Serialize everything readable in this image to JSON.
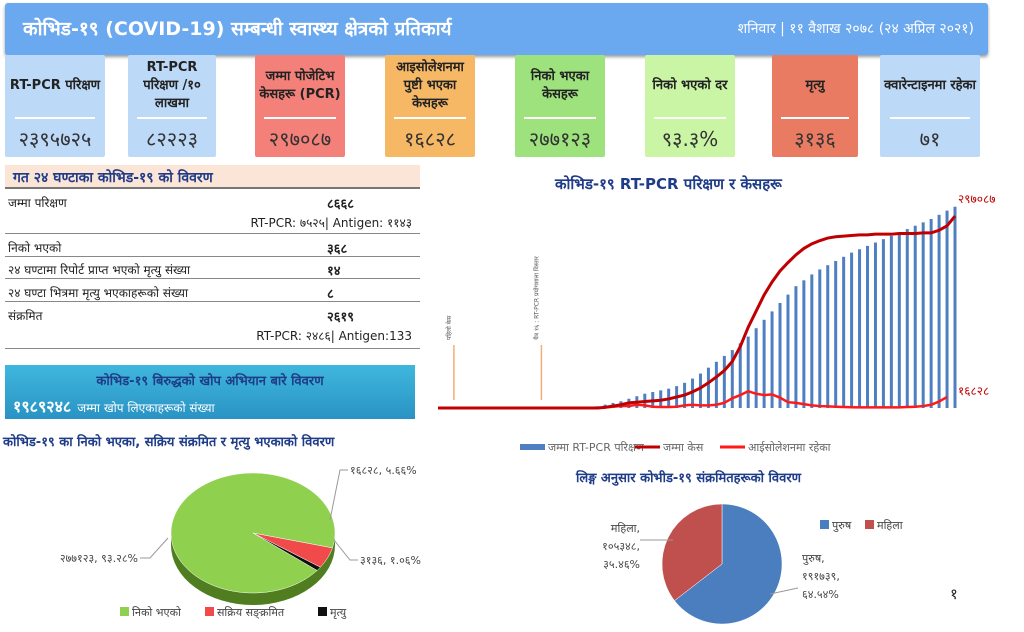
{
  "header": {
    "title": "कोभिड-१९ (COVID-19) सम्बन्धी स्वास्थ्य क्षेत्रको प्रतिकार्य",
    "date": "शनिवार | ११ वैशाख २०७८ (२४ अप्रिल २०२१)"
  },
  "cards": [
    {
      "label": "RT-PCR परिक्षण",
      "value": "२३९५७२५",
      "color": "#bcd9f7"
    },
    {
      "label": "RT-PCR परिक्षण /१० लाखमा",
      "value": "८२२२३",
      "color": "#bcd9f7"
    },
    {
      "label": "जम्मा पोजेटिभ केसहरू (PCR)",
      "value": "२९७०८७",
      "color": "#f4807a"
    },
    {
      "label": "आइसोलेशनमा पुष्टी भएका केसहरू",
      "value": "१६८२८",
      "color": "#f7b865"
    },
    {
      "label": "निको भएका केसहरू",
      "value": "२७७१२३",
      "color": "#9ee27e"
    },
    {
      "label": "निको भएको दर",
      "value": "९३.३%",
      "color": "#c9f5a5"
    },
    {
      "label": "मृत्यु",
      "value": "३१३६",
      "color": "#e97b62"
    },
    {
      "label": "क्वारेन्टाइनमा रहेका",
      "value": "७१",
      "color": "#bcd9f7"
    }
  ],
  "last24": {
    "title": "गत २४ घण्टाका कोभिड-१९ को विवरण",
    "rows": [
      {
        "label": "जम्मा परिक्षण",
        "value": "८६६८",
        "sub": "RT-PCR: ७५२५| Antigen: ११४३"
      },
      {
        "label": "निको भएको",
        "value": "३६८"
      },
      {
        "label": "२४ घण्टामा रिपोर्ट प्राप्त भएको मृत्यु संख्या",
        "value": "१४"
      },
      {
        "label": "२४ घण्टा भित्रमा मृत्यु भएकाहरूको संख्या",
        "value": "८"
      },
      {
        "label": "संक्रमित",
        "value": "२६१९",
        "sub": "RT-PCR: २४८६| Antigen:133"
      }
    ]
  },
  "vaccine": {
    "title": "कोभिड-१९ बिरुद्धको खोप अभियान बारे विवरण",
    "count": "१९८९२४८",
    "label": "जम्मा खोप लिएकाहरूको संख्या"
  },
  "page_number": "१",
  "chart_data": [
    {
      "type": "bar+line",
      "title": "कोभिड-१९ RT-PCR परिक्षण र केसहरू",
      "annotations": [
        "पहिलो केस",
        "चैत्र १६ : RT-PCR प्रयोगशाला विस्तार"
      ],
      "end_labels": {
        "cases": "२९७०८७",
        "isolation": "१६८२८"
      },
      "legend": [
        "जम्मा RT-PCR परिक्षण",
        "जम्मा केस",
        "आईसोलेशनमा रहेका"
      ],
      "colors": [
        "#4f7fc0",
        "#c00000",
        "#ff1a1a"
      ],
      "tests_thousands": [
        0,
        0,
        0,
        0,
        0,
        0,
        0,
        0,
        0,
        0,
        0,
        0,
        0,
        0,
        0,
        0,
        0,
        0,
        5,
        10,
        20,
        40,
        60,
        80,
        110,
        140,
        170,
        190,
        210,
        230,
        260,
        300,
        350,
        410,
        480,
        550,
        620,
        690,
        770,
        850,
        950,
        1050,
        1150,
        1250,
        1350,
        1450,
        1520,
        1590,
        1650,
        1700,
        1750,
        1800,
        1850,
        1890,
        1930,
        1970,
        2010,
        2050,
        2090,
        2130,
        2170,
        2210,
        2250,
        2300,
        2350,
        2396
      ],
      "cases_thousands": [
        0,
        0,
        0,
        0,
        0,
        0,
        0,
        0,
        0,
        0,
        0,
        0,
        0,
        0,
        0,
        0,
        0,
        0,
        0,
        0,
        0,
        1,
        3,
        5,
        8,
        9,
        10,
        11,
        12,
        14,
        17,
        20,
        25,
        31,
        39,
        48,
        58,
        72,
        95,
        125,
        150,
        175,
        195,
        212,
        225,
        237,
        247,
        254,
        259,
        263,
        265,
        266,
        267,
        268,
        268,
        269,
        269,
        269,
        270,
        270,
        270,
        271,
        271,
        275,
        282,
        297
      ],
      "isolation_thousands": [
        0,
        0,
        0,
        0,
        0,
        0,
        0,
        0,
        0,
        0,
        0,
        0,
        0,
        0,
        0,
        0,
        0,
        0,
        0,
        0,
        0,
        1,
        2,
        3,
        3,
        5,
        4,
        2,
        1.5,
        1.5,
        2,
        4,
        5,
        4,
        4,
        5,
        8,
        15,
        20,
        26,
        22,
        20,
        21,
        16,
        9,
        8,
        6,
        4,
        3,
        2.5,
        2,
        1.5,
        1.2,
        1,
        1,
        1,
        1,
        1,
        1,
        1.5,
        2,
        3,
        5,
        10,
        17
      ]
    },
    {
      "type": "pie",
      "title": "कोभिड-१९ का निको भएका, सक्रिय संक्रमित र मृत्यु भएकाको विवरण",
      "slices": [
        {
          "name": "निको भएको",
          "value": 277123,
          "percent": 93.28,
          "label": "२७७१२३, ९३.२८%",
          "color": "#8fd14f"
        },
        {
          "name": "सक्रिय सङ्क्रमित",
          "value": 16828,
          "percent": 5.66,
          "label": "१६८२८, ५.६६%",
          "color": "#f04a4a"
        },
        {
          "name": "मृत्यु",
          "value": 3136,
          "percent": 1.06,
          "label": "३१३६, १.०६%",
          "color": "#111111"
        }
      ]
    },
    {
      "type": "pie",
      "title": "लिङ्ग अनुसार कोभीड-१९ संक्रमितहरूको विवरण",
      "slices": [
        {
          "name": "पुरुष",
          "value": 191739,
          "percent": 64.54,
          "label": "पुरुष, १९१७३९, ६४.५४%",
          "color": "#4a7ebf"
        },
        {
          "name": "महिला",
          "value": 105348,
          "percent": 35.46,
          "label": "महिला, १०५३४८, ३५.४६%",
          "color": "#c0504d"
        }
      ]
    }
  ]
}
